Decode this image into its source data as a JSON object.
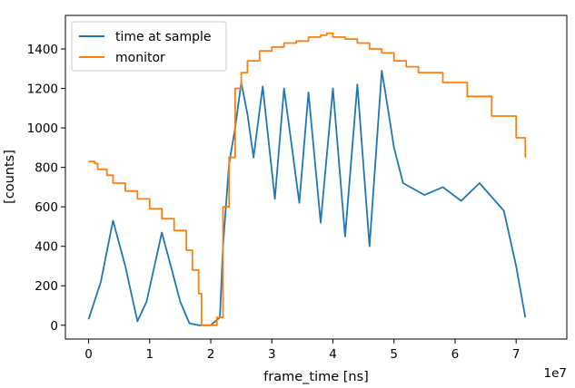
{
  "chart_data": {
    "type": "line",
    "title": "",
    "xlabel": "frame_time [ns]",
    "ylabel": "[counts]",
    "x_offset_label": "1e7",
    "xlim": [
      -0.38,
      7.83
    ],
    "ylim": [
      -70,
      1570
    ],
    "x_ticks": [
      0,
      1,
      2,
      3,
      4,
      5,
      6,
      7
    ],
    "y_ticks": [
      0,
      200,
      400,
      600,
      800,
      1000,
      1200,
      1400
    ],
    "grid": false,
    "legend_position": "upper left",
    "colors": {
      "time_at_sample": "#1f77b4",
      "monitor": "#ff7f0e"
    },
    "series": [
      {
        "name": "time at sample",
        "style": "line",
        "x": [
          0,
          0.2,
          0.4,
          0.6,
          0.8,
          0.95,
          1.2,
          1.5,
          1.65,
          1.8,
          2.0,
          2.15,
          2.2,
          2.3,
          2.4,
          2.5,
          2.6,
          2.7,
          2.85,
          3.05,
          3.2,
          3.45,
          3.6,
          3.8,
          4.0,
          4.2,
          4.4,
          4.6,
          4.8,
          4.9,
          5.0,
          5.15,
          5.5,
          5.8,
          6.1,
          6.4,
          6.8,
          7.0,
          7.15
        ],
        "values": [
          30,
          220,
          530,
          300,
          20,
          120,
          470,
          120,
          10,
          0,
          0,
          40,
          400,
          820,
          1000,
          1230,
          1070,
          850,
          1210,
          640,
          1200,
          620,
          1180,
          520,
          1200,
          450,
          1220,
          400,
          1290,
          1100,
          900,
          720,
          660,
          700,
          630,
          720,
          580,
          300,
          40
        ]
      },
      {
        "name": "monitor",
        "style": "step",
        "x": [
          0,
          0.1,
          0.15,
          0.3,
          0.4,
          0.6,
          0.8,
          1.0,
          1.2,
          1.4,
          1.6,
          1.7,
          1.8,
          1.85,
          2.0,
          2.1,
          2.2,
          2.3,
          2.4,
          2.5,
          2.6,
          2.8,
          3.0,
          3.2,
          3.4,
          3.6,
          3.8,
          3.9,
          4.0,
          4.2,
          4.4,
          4.6,
          4.8,
          5.0,
          5.2,
          5.4,
          5.8,
          6.2,
          6.6,
          7.0,
          7.15
        ],
        "values": [
          830,
          820,
          790,
          760,
          720,
          680,
          640,
          590,
          540,
          480,
          380,
          280,
          160,
          0,
          0,
          40,
          600,
          850,
          1200,
          1280,
          1340,
          1390,
          1410,
          1430,
          1440,
          1460,
          1470,
          1480,
          1460,
          1450,
          1430,
          1400,
          1380,
          1340,
          1310,
          1280,
          1230,
          1160,
          1060,
          950,
          850
        ]
      }
    ]
  }
}
